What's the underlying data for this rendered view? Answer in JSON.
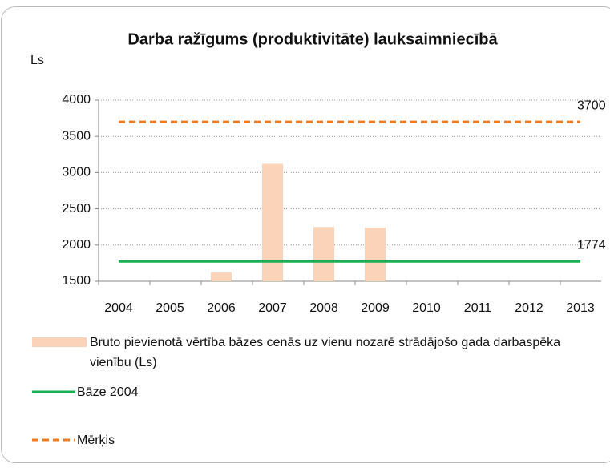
{
  "chart_data": {
    "type": "bar",
    "title": "Darba ražīgums (produktivitāte) lauksaimniecībā",
    "y_axis_label": "Ls",
    "categories": [
      "2004",
      "2005",
      "2006",
      "2007",
      "2008",
      "2009",
      "2010",
      "2011",
      "2012",
      "2013"
    ],
    "series": [
      {
        "name": "Bruto pievienotā vērtība bāzes cenās uz vienu nozarē strādājošo gada darbaspēka vienību (Ls)",
        "type": "bar",
        "color": "#fbd3b8",
        "values": [
          null,
          null,
          1620,
          3120,
          2250,
          2240,
          null,
          null,
          null,
          null
        ]
      },
      {
        "name": "Bāze 2004",
        "type": "line",
        "color": "#1aaf54",
        "values": [
          1774,
          1774,
          1774,
          1774,
          1774,
          1774,
          1774,
          1774,
          1774,
          1774
        ],
        "value_labels": [
          null,
          null,
          null,
          null,
          null,
          null,
          null,
          null,
          null,
          "1774"
        ]
      },
      {
        "name": "Mērķis",
        "type": "line",
        "dashed": true,
        "color": "#f07b22",
        "values": [
          3700,
          3700,
          3700,
          3700,
          3700,
          3700,
          3700,
          3700,
          3700,
          3700
        ],
        "value_labels": [
          null,
          null,
          null,
          null,
          null,
          null,
          null,
          null,
          null,
          "3700"
        ]
      }
    ],
    "ylim": [
      1500,
      4000
    ],
    "yticks": [
      1500,
      2000,
      2500,
      3000,
      3500,
      4000
    ],
    "grid": true
  }
}
